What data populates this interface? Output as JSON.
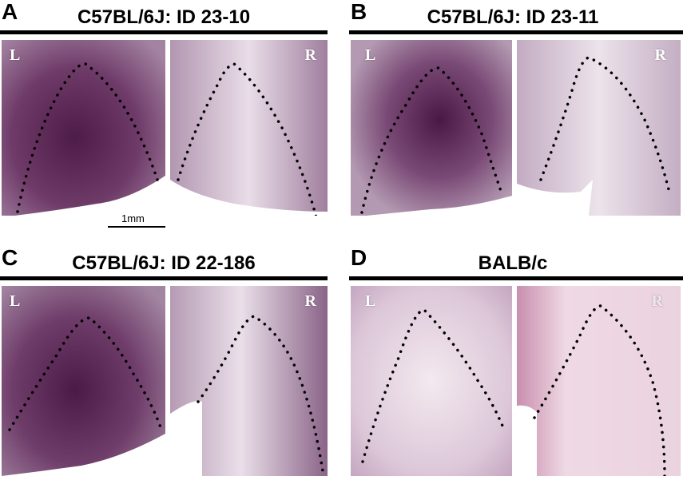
{
  "panels": [
    {
      "letter": "A",
      "title": "C57BL/6J: ID 23-10",
      "left_label": "L",
      "right_label": "R"
    },
    {
      "letter": "B",
      "title": "C57BL/6J: ID 23-11",
      "left_label": "L",
      "right_label": "R"
    },
    {
      "letter": "C",
      "title": "C57BL/6J: ID 22-186",
      "left_label": "L",
      "right_label": "R"
    },
    {
      "letter": "D",
      "title": "BALB/c",
      "left_label": "L",
      "right_label": "R"
    }
  ],
  "scale_bar": {
    "label": "1mm"
  },
  "colors": {
    "stain_dark": "#5a2454",
    "stain_mid": "#9a6a98",
    "stain_light": "#efe4ee",
    "balb_tint": "#f4e2ea",
    "outline": "#000000"
  }
}
